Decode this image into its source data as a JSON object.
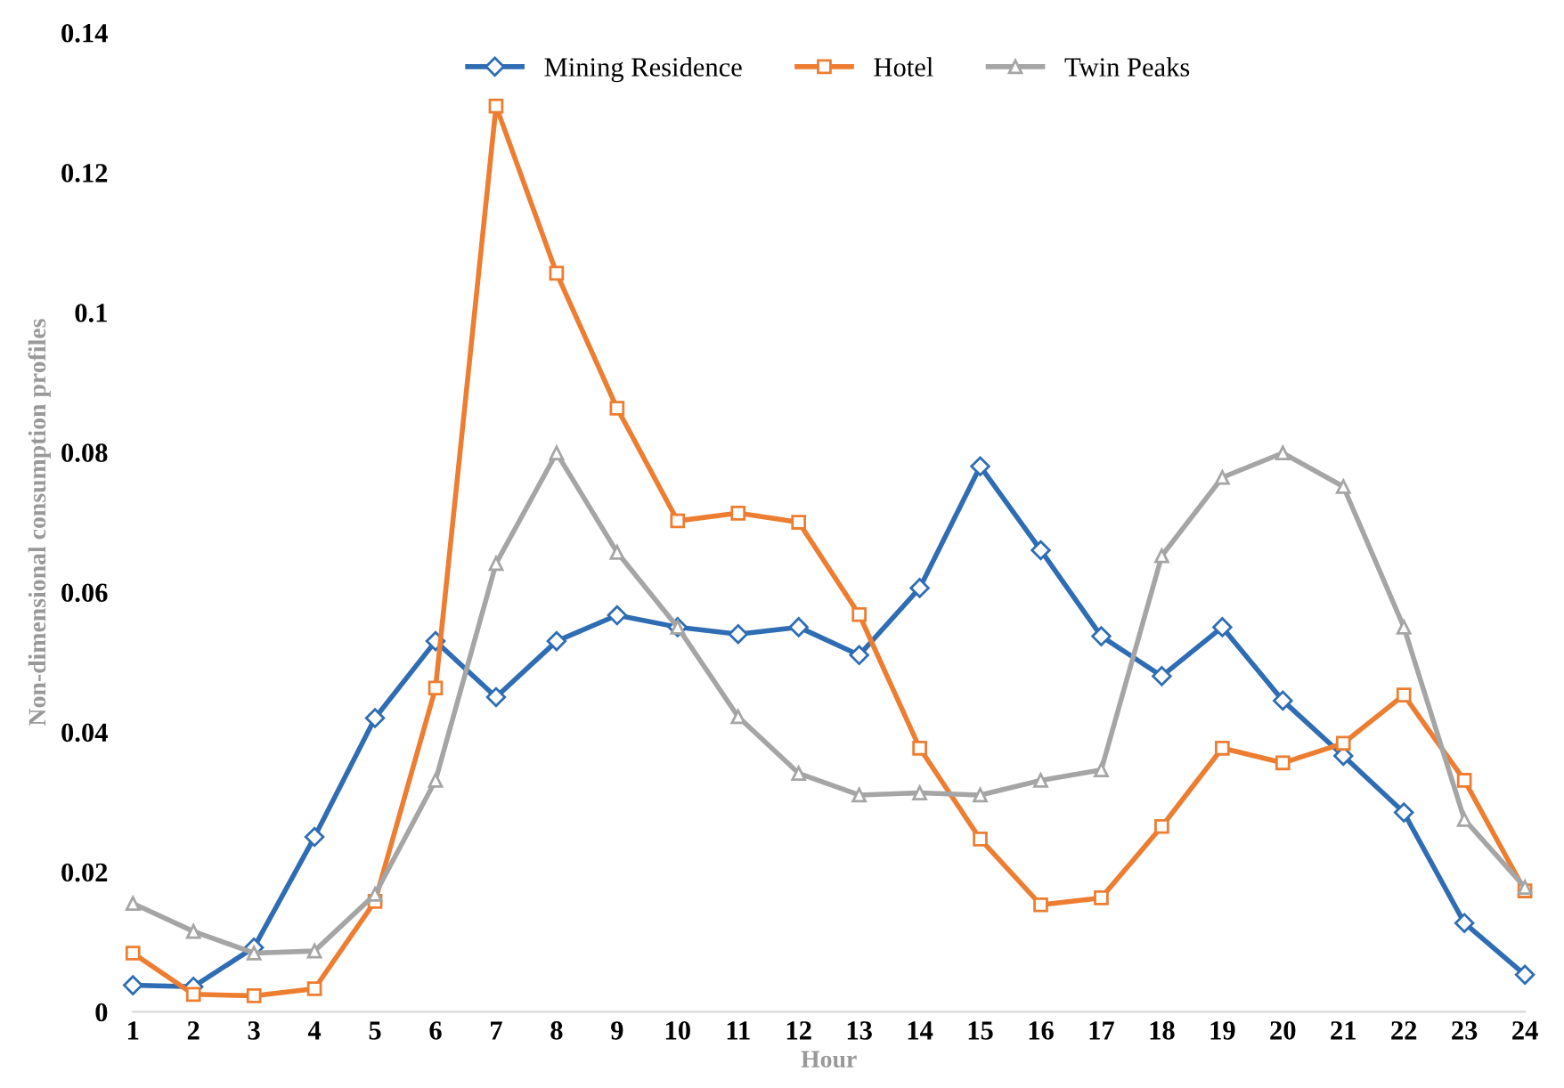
{
  "chart_data": {
    "type": "line",
    "xlabel": "Hour",
    "ylabel": "Non-dimensional consumption profiles",
    "x": [
      1,
      2,
      3,
      4,
      5,
      6,
      7,
      8,
      9,
      10,
      11,
      12,
      13,
      14,
      15,
      16,
      17,
      18,
      19,
      20,
      21,
      22,
      23,
      24
    ],
    "xlim": [
      1,
      24
    ],
    "xticks": [
      1,
      2,
      3,
      4,
      5,
      6,
      7,
      8,
      9,
      10,
      11,
      12,
      13,
      14,
      15,
      16,
      17,
      18,
      19,
      20,
      21,
      22,
      23,
      24
    ],
    "ylim": [
      0,
      0.14
    ],
    "yticks": [
      0,
      0.02,
      0.04,
      0.06,
      0.08,
      0.1,
      0.12,
      0.14
    ],
    "grid": false,
    "legend": "top",
    "line_style": "solid",
    "series": [
      {
        "name": "Mining Residence",
        "color": "#2e6db4",
        "marker": "diamond",
        "values": [
          0.0038,
          0.0036,
          0.0092,
          0.025,
          0.042,
          0.053,
          0.045,
          0.053,
          0.0567,
          0.055,
          0.054,
          0.055,
          0.051,
          0.0606,
          0.078,
          0.066,
          0.0537,
          0.048,
          0.055,
          0.0445,
          0.0366,
          0.0285,
          0.0127,
          0.0053
        ]
      },
      {
        "name": "Hotel",
        "color": "#ed7d31",
        "marker": "square",
        "values": [
          0.0084,
          0.0025,
          0.0023,
          0.0033,
          0.0158,
          0.0463,
          0.1295,
          0.1056,
          0.0863,
          0.0702,
          0.0713,
          0.07,
          0.0568,
          0.0377,
          0.0247,
          0.0153,
          0.0163,
          0.0265,
          0.0377,
          0.0356,
          0.0384,
          0.0453,
          0.0331,
          0.0173
        ]
      },
      {
        "name": "Twin Peaks",
        "color": "#a5a5a5",
        "marker": "triangle",
        "values": [
          0.0155,
          0.0115,
          0.0084,
          0.0087,
          0.0168,
          0.0331,
          0.0641,
          0.0799,
          0.0657,
          0.055,
          0.0422,
          0.0341,
          0.031,
          0.0313,
          0.031,
          0.0331,
          0.0346,
          0.0652,
          0.0764,
          0.0799,
          0.0751,
          0.055,
          0.0275,
          0.0178
        ]
      }
    ]
  }
}
